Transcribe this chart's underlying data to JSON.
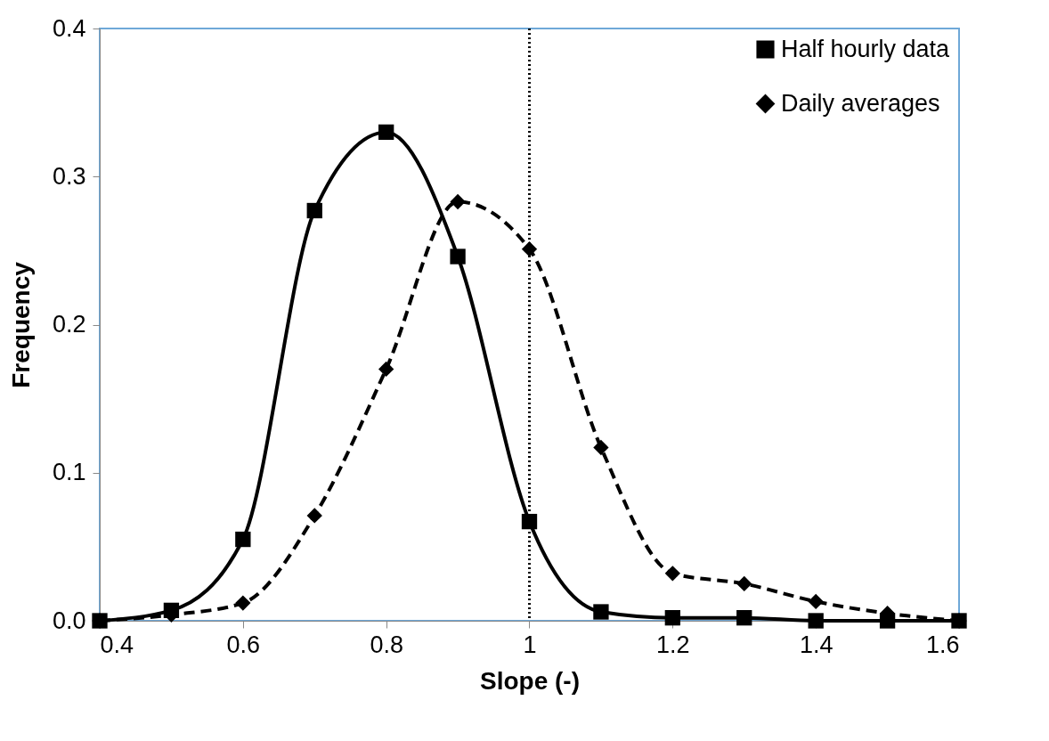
{
  "chart_data": {
    "type": "line",
    "xlabel": "Slope (-)",
    "ylabel": "Frequency",
    "x": [
      0.4,
      0.5,
      0.6,
      0.7,
      0.8,
      0.9,
      1.0,
      1.1,
      1.2,
      1.3,
      1.4,
      1.5,
      1.6
    ],
    "series": [
      {
        "name": "Half hourly data",
        "color": "#000000",
        "marker": "square",
        "line_style": "solid",
        "values": [
          0,
          0.007,
          0.055,
          0.277,
          0.33,
          0.246,
          0.067,
          0.006,
          0.002,
          0.002,
          0,
          0,
          0
        ]
      },
      {
        "name": "Daily averages",
        "color": "#000000",
        "marker": "diamond",
        "line_style": "dashed",
        "values": [
          0,
          0.004,
          0.012,
          0.071,
          0.17,
          0.283,
          0.251,
          0.117,
          0.032,
          0.025,
          0.013,
          0.005,
          0
        ]
      }
    ],
    "xlim": [
      0.4,
      1.6
    ],
    "xticks": [
      0.4,
      0.6,
      0.8,
      {
        "value": 1,
        "label": "1"
      },
      1.2,
      1.4,
      1.6
    ],
    "ylim": [
      0,
      0.4
    ],
    "yticks": [
      {
        "value": 0,
        "label": "0.0"
      },
      0.1,
      0.2,
      0.3,
      0.4
    ],
    "ref_lines": [
      {
        "axis": "x",
        "value": 1,
        "label": null,
        "color": "#000000",
        "line_style": "dotted"
      }
    ],
    "grid": false,
    "legend": "top right"
  }
}
